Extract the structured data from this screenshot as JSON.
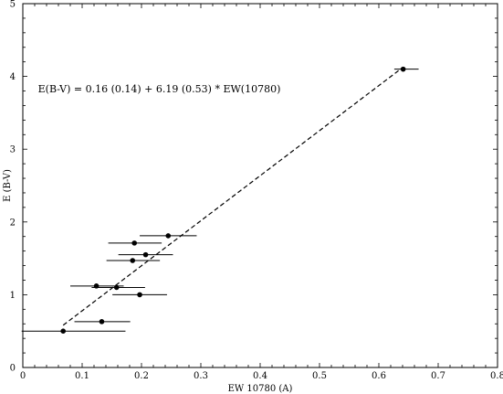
{
  "chart_data": {
    "type": "scatter",
    "xlabel": "EW 10780 (A)",
    "ylabel": "E (B-V)",
    "xlim": [
      0,
      0.8
    ],
    "ylim": [
      0,
      5
    ],
    "x_ticks": [
      {
        "value": 0,
        "label": "0"
      },
      {
        "value": 0.1,
        "label": "0.1"
      },
      {
        "value": 0.2,
        "label": "0.2"
      },
      {
        "value": 0.3,
        "label": "0.3"
      },
      {
        "value": 0.4,
        "label": "0.4"
      },
      {
        "value": 0.5,
        "label": "0.5"
      },
      {
        "value": 0.6,
        "label": "0.6"
      },
      {
        "value": 0.7,
        "label": "0.7"
      },
      {
        "value": 0.8,
        "label": "0.8"
      }
    ],
    "y_ticks": [
      {
        "value": 0,
        "label": "0"
      },
      {
        "value": 1,
        "label": "1"
      },
      {
        "value": 2,
        "label": "2"
      },
      {
        "value": 3,
        "label": "3"
      },
      {
        "value": 4,
        "label": "4"
      },
      {
        "value": 5,
        "label": "5"
      }
    ],
    "grid": false,
    "points": [
      {
        "x": 0.068,
        "y": 0.5,
        "xerr_low": 0.07,
        "xerr_high": 0.105
      },
      {
        "x": 0.133,
        "y": 0.63,
        "xerr_low": 0.046,
        "xerr_high": 0.048
      },
      {
        "x": 0.158,
        "y": 1.1,
        "xerr_low": 0.042,
        "xerr_high": 0.048
      },
      {
        "x": 0.197,
        "y": 1.0,
        "xerr_low": 0.046,
        "xerr_high": 0.046
      },
      {
        "x": 0.124,
        "y": 1.12,
        "xerr_low": 0.044,
        "xerr_high": 0.046
      },
      {
        "x": 0.185,
        "y": 1.47,
        "xerr_low": 0.044,
        "xerr_high": 0.046
      },
      {
        "x": 0.207,
        "y": 1.55,
        "xerr_low": 0.046,
        "xerr_high": 0.046
      },
      {
        "x": 0.188,
        "y": 1.71,
        "xerr_low": 0.044,
        "xerr_high": 0.046
      },
      {
        "x": 0.245,
        "y": 1.81,
        "xerr_low": 0.048,
        "xerr_high": 0.048
      },
      {
        "x": 0.641,
        "y": 4.1,
        "xerr_low": 0.015,
        "xerr_high": 0.026
      }
    ],
    "fit_line": {
      "intercept": 0.16,
      "slope": 6.19,
      "x_start": 0.068,
      "x_end": 0.641,
      "style": "dashed"
    },
    "annotation": {
      "text": "E(B-V) = 0.16 (0.14) + 6.19 (0.53) * EW(10780)",
      "x": 0.23,
      "y": 3.78
    }
  }
}
